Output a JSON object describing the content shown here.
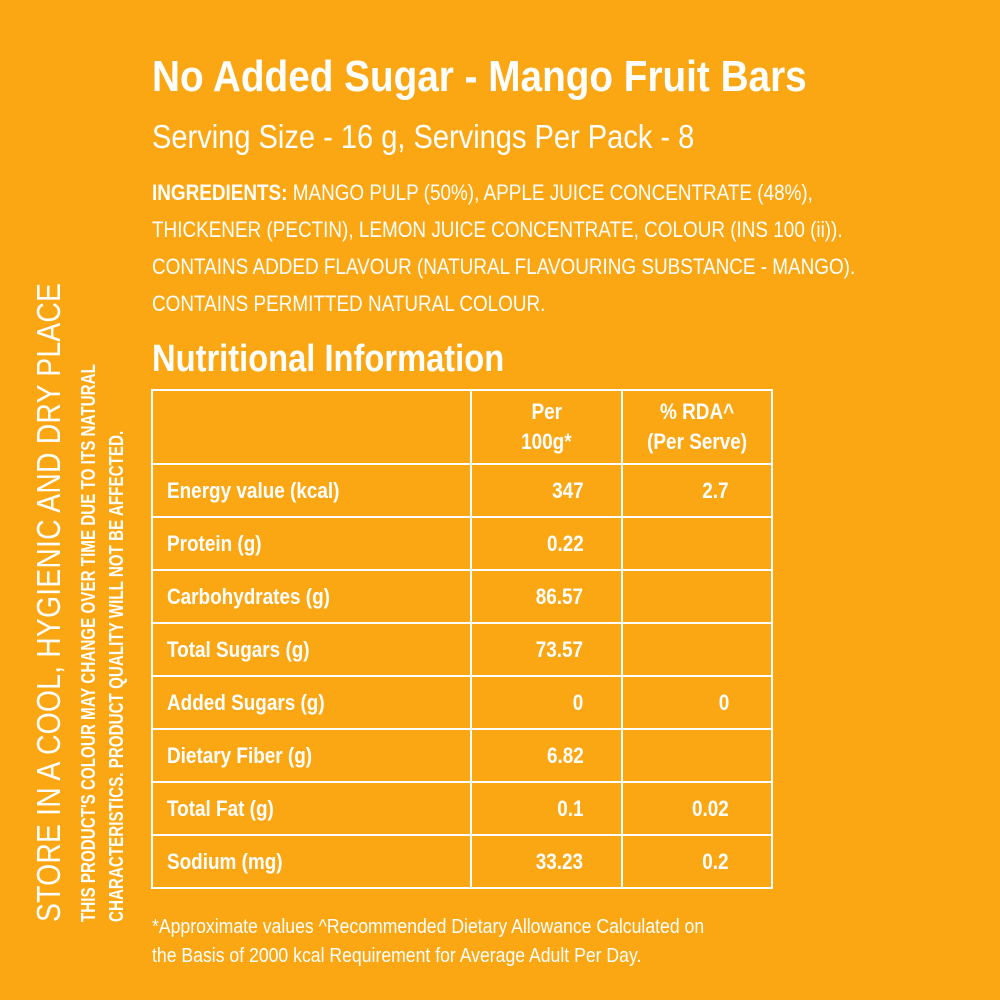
{
  "side": {
    "store": "STORE IN A COOL, HYGIENIC AND DRY PLACE",
    "note_line1": "THIS PRODUCT'S COLOUR MAY CHANGE OVER TIME DUE TO ITS NATURAL",
    "note_line2": "CHARACTERISTICS. PRODUCT QUALITY WILL NOT BE AFFECTED."
  },
  "header": {
    "title": "No Added Sugar - Mango Fruit Bars",
    "serving": "Serving Size  - 16 g, Servings Per Pack - 8"
  },
  "ingredients": {
    "label": "INGREDIENTS:",
    "text": " MANGO PULP (50%), APPLE JUICE CONCENTRATE (48%), THICKENER (PECTIN), LEMON JUICE CONCENTRATE, COLOUR (INS 100 (ii)). CONTAINS ADDED FLAVOUR (NATURAL FLAVOURING SUBSTANCE - MANGO). CONTAINS PERMITTED NATURAL COLOUR."
  },
  "nutrition": {
    "title": "Nutritional Information",
    "headers": {
      "nutrient": "",
      "per100_line1": "Per",
      "per100_line2": "100g*",
      "rda_line1": "% RDA^",
      "rda_line2": "(Per Serve)"
    },
    "rows": [
      {
        "nutrient": "Energy value (kcal)",
        "per100": "347",
        "rda": "2.7"
      },
      {
        "nutrient": "Protein (g)",
        "per100": "0.22",
        "rda": ""
      },
      {
        "nutrient": "Carbohydrates (g)",
        "per100": "86.57",
        "rda": ""
      },
      {
        "nutrient": "Total Sugars (g)",
        "per100": "73.57",
        "rda": ""
      },
      {
        "nutrient": "Added Sugars (g)",
        "per100": "0",
        "rda": "0"
      },
      {
        "nutrient": "Dietary Fiber (g)",
        "per100": "6.82",
        "rda": ""
      },
      {
        "nutrient": "Total Fat (g)",
        "per100": "0.1",
        "rda": "0.02"
      },
      {
        "nutrient": "Sodium (mg)",
        "per100": "33.23",
        "rda": "0.2"
      }
    ]
  },
  "footnote": {
    "line1": "*Approximate values ^Recommended Dietary Allowance Calculated on",
    "line2": "the Basis of 2000 kcal Requirement for Average Adult Per Day."
  },
  "colors": {
    "background": "#FBA714",
    "text": "#FFFFFF"
  }
}
